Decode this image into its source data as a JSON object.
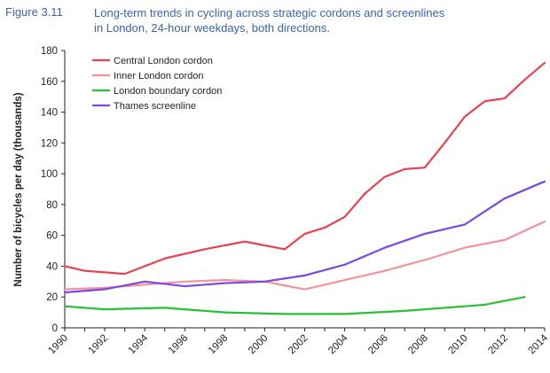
{
  "figure": {
    "label": "Figure 3.11",
    "title": "Long-term trends in cycling across strategic cordons and screenlines in London, 24-hour weekdays, both directions."
  },
  "chart_data": {
    "type": "line",
    "title": "Long-term trends in cycling across strategic cordons and screenlines in London, 24-hour weekdays, both directions.",
    "xlabel": "",
    "ylabel": "Number of bicycles per day (thousands)",
    "xlim": [
      1990,
      2014
    ],
    "ylim": [
      0,
      180
    ],
    "xticks": [
      1990,
      1992,
      1994,
      1996,
      1998,
      2000,
      2002,
      2004,
      2006,
      2008,
      2010,
      2012,
      2014
    ],
    "yticks": [
      0,
      20,
      40,
      60,
      80,
      100,
      120,
      140,
      160,
      180
    ],
    "grid": false,
    "legend_position": "top-left",
    "series": [
      {
        "name": "Central London cordon",
        "color": "#e8414f",
        "points": [
          [
            1990,
            40
          ],
          [
            1991,
            37
          ],
          [
            1993,
            35
          ],
          [
            1995,
            45
          ],
          [
            1997,
            51
          ],
          [
            1999,
            56
          ],
          [
            2001,
            51
          ],
          [
            2002,
            61
          ],
          [
            2003,
            65
          ],
          [
            2004,
            72
          ],
          [
            2005,
            87
          ],
          [
            2006,
            98
          ],
          [
            2007,
            103
          ],
          [
            2008,
            104
          ],
          [
            2009,
            120
          ],
          [
            2010,
            137
          ],
          [
            2011,
            147
          ],
          [
            2012,
            149
          ],
          [
            2013,
            161
          ],
          [
            2014,
            172
          ]
        ]
      },
      {
        "name": "Inner London cordon",
        "color": "#f4919b",
        "points": [
          [
            1990,
            25
          ],
          [
            1992,
            26
          ],
          [
            1994,
            28
          ],
          [
            1996,
            30
          ],
          [
            1998,
            31
          ],
          [
            2000,
            30
          ],
          [
            2002,
            25
          ],
          [
            2004,
            31
          ],
          [
            2006,
            37
          ],
          [
            2008,
            44
          ],
          [
            2010,
            52
          ],
          [
            2012,
            57
          ],
          [
            2014,
            69
          ]
        ]
      },
      {
        "name": "London boundary cordon",
        "color": "#27c234",
        "points": [
          [
            1990,
            14
          ],
          [
            1992,
            12
          ],
          [
            1995,
            13
          ],
          [
            1998,
            10
          ],
          [
            2001,
            9
          ],
          [
            2004,
            9
          ],
          [
            2007,
            11
          ],
          [
            2010,
            14
          ],
          [
            2011,
            15
          ],
          [
            2013,
            20
          ]
        ]
      },
      {
        "name": "Thames screenline",
        "color": "#7b47e3",
        "points": [
          [
            1990,
            23
          ],
          [
            1992,
            25
          ],
          [
            1994,
            30
          ],
          [
            1996,
            27
          ],
          [
            1998,
            29
          ],
          [
            2000,
            30
          ],
          [
            2002,
            34
          ],
          [
            2004,
            41
          ],
          [
            2006,
            52
          ],
          [
            2008,
            61
          ],
          [
            2010,
            67
          ],
          [
            2012,
            84
          ],
          [
            2014,
            95
          ]
        ]
      }
    ]
  }
}
